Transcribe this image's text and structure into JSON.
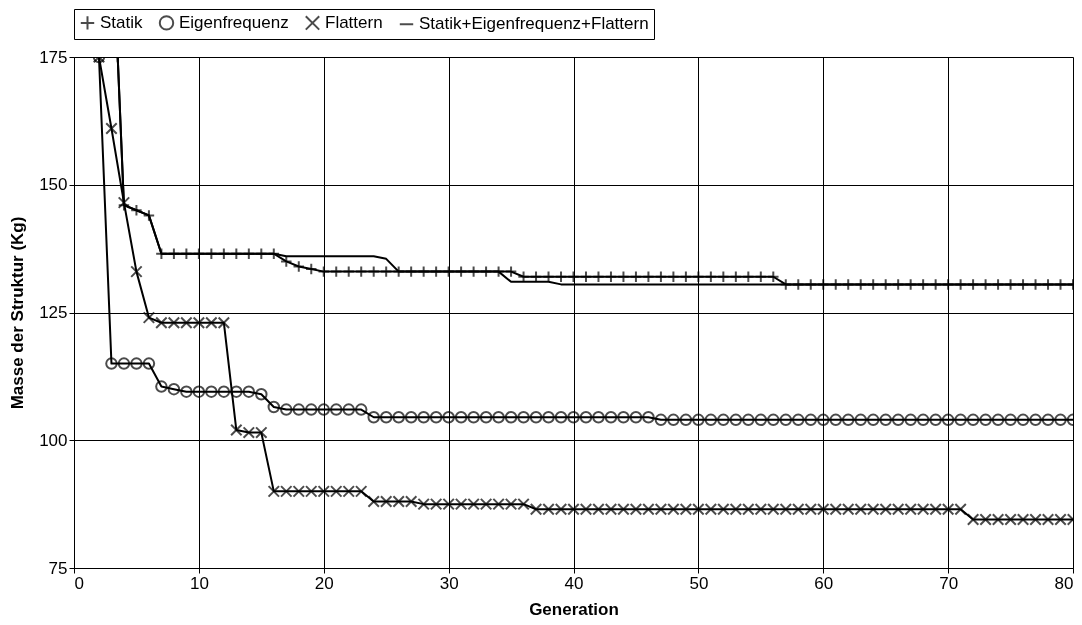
{
  "chart_data": {
    "type": "line",
    "xlabel": "Generation",
    "ylabel": "Masse der Struktur (Kg)",
    "xlim": [
      0,
      80
    ],
    "xticks": [
      0,
      10,
      20,
      30,
      40,
      50,
      60,
      70,
      80
    ],
    "ylim": [
      75,
      175
    ],
    "yticks": [
      75,
      100,
      125,
      150,
      175
    ],
    "grid": true,
    "legend": "top",
    "line_style": "solid",
    "series": [
      {
        "name": "Statik",
        "color": "#000000",
        "marker": "plus",
        "x": [
          3.5,
          4,
          5,
          6,
          7,
          8,
          9,
          10,
          11,
          12,
          13,
          14,
          15,
          16,
          17,
          18,
          19,
          20,
          21,
          22,
          23,
          24,
          25,
          26,
          27,
          28,
          29,
          30,
          31,
          32,
          33,
          34,
          35,
          36,
          37,
          38,
          39,
          40,
          41,
          42,
          43,
          44,
          45,
          46,
          47,
          48,
          49,
          50,
          51,
          52,
          53,
          54,
          55,
          56,
          57,
          58,
          59,
          60,
          61,
          62,
          63,
          64,
          65,
          66,
          67,
          68,
          69,
          70,
          71,
          72,
          73,
          74,
          75,
          76,
          77,
          78,
          79,
          80
        ],
        "values": [
          175,
          146,
          145,
          144,
          136.5,
          136.5,
          136.5,
          136.5,
          136.5,
          136.5,
          136.5,
          136.5,
          136.5,
          136.5,
          135,
          134,
          133.5,
          133,
          133,
          133,
          133,
          133,
          133,
          133,
          133,
          133,
          133,
          133,
          133,
          133,
          133,
          133,
          133,
          132,
          132,
          132,
          132,
          132,
          132,
          132,
          132,
          132,
          132,
          132,
          132,
          132,
          132,
          132,
          132,
          132,
          132,
          132,
          132,
          132,
          130.5,
          130.5,
          130.5,
          130.5,
          130.5,
          130.5,
          130.5,
          130.5,
          130.5,
          130.5,
          130.5,
          130.5,
          130.5,
          130.5,
          130.5,
          130.5,
          130.5,
          130.5,
          130.5,
          130.5,
          130.5,
          130.5,
          130.5,
          130.5
        ]
      },
      {
        "name": "Eigenfrequenz",
        "color": "#000000",
        "marker": "circle",
        "x": [
          2,
          3,
          4,
          5,
          6,
          7,
          8,
          9,
          10,
          11,
          12,
          13,
          14,
          15,
          16,
          17,
          18,
          19,
          20,
          21,
          22,
          23,
          24,
          25,
          26,
          27,
          28,
          29,
          30,
          31,
          32,
          33,
          34,
          35,
          36,
          37,
          38,
          39,
          40,
          41,
          42,
          43,
          44,
          45,
          46,
          47,
          48,
          49,
          50,
          51,
          52,
          53,
          54,
          55,
          56,
          57,
          58,
          59,
          60,
          61,
          62,
          63,
          64,
          65,
          66,
          67,
          68,
          69,
          70,
          71,
          72,
          73,
          74,
          75,
          76,
          77,
          78,
          79,
          80
        ],
        "values": [
          175,
          115,
          115,
          115,
          115,
          110.5,
          110,
          109.5,
          109.5,
          109.5,
          109.5,
          109.5,
          109.5,
          109,
          106.5,
          106,
          106,
          106,
          106,
          106,
          106,
          106,
          104.5,
          104.5,
          104.5,
          104.5,
          104.5,
          104.5,
          104.5,
          104.5,
          104.5,
          104.5,
          104.5,
          104.5,
          104.5,
          104.5,
          104.5,
          104.5,
          104.5,
          104.5,
          104.5,
          104.5,
          104.5,
          104.5,
          104.5,
          104,
          104,
          104,
          104,
          104,
          104,
          104,
          104,
          104,
          104,
          104,
          104,
          104,
          104,
          104,
          104,
          104,
          104,
          104,
          104,
          104,
          104,
          104,
          104,
          104,
          104,
          104,
          104,
          104,
          104,
          104,
          104,
          104,
          104
        ]
      },
      {
        "name": "Flattern",
        "color": "#000000",
        "marker": "cross",
        "x": [
          2,
          3,
          4,
          5,
          6,
          7,
          8,
          9,
          10,
          11,
          12,
          13,
          14,
          15,
          16,
          17,
          18,
          19,
          20,
          21,
          22,
          23,
          24,
          25,
          26,
          27,
          28,
          29,
          30,
          31,
          32,
          33,
          34,
          35,
          36,
          37,
          38,
          39,
          40,
          41,
          42,
          43,
          44,
          45,
          46,
          47,
          48,
          49,
          50,
          51,
          52,
          53,
          54,
          55,
          56,
          57,
          58,
          59,
          60,
          61,
          62,
          63,
          64,
          65,
          66,
          67,
          68,
          69,
          70,
          71,
          72,
          73,
          74,
          75,
          76,
          77,
          78,
          79,
          80
        ],
        "values": [
          175,
          161,
          146.5,
          133,
          124,
          123,
          123,
          123,
          123,
          123,
          123,
          102,
          101.5,
          101.5,
          90,
          90,
          90,
          90,
          90,
          90,
          90,
          90,
          88,
          88,
          88,
          88,
          87.5,
          87.5,
          87.5,
          87.5,
          87.5,
          87.5,
          87.5,
          87.5,
          87.5,
          86.5,
          86.5,
          86.5,
          86.5,
          86.5,
          86.5,
          86.5,
          86.5,
          86.5,
          86.5,
          86.5,
          86.5,
          86.5,
          86.5,
          86.5,
          86.5,
          86.5,
          86.5,
          86.5,
          86.5,
          86.5,
          86.5,
          86.5,
          86.5,
          86.5,
          86.5,
          86.5,
          86.5,
          86.5,
          86.5,
          86.5,
          86.5,
          86.5,
          86.5,
          86.5,
          84.5,
          84.5,
          84.5,
          84.5,
          84.5,
          84.5,
          84.5,
          84.5,
          84.5
        ]
      },
      {
        "name": "Statik+Eigenfrequenz+Flattern",
        "color": "#000000",
        "marker": "none",
        "x": [
          3.5,
          4,
          5,
          6,
          7,
          8,
          9,
          10,
          11,
          12,
          13,
          14,
          15,
          16,
          17,
          18,
          19,
          20,
          21,
          22,
          23,
          24,
          25,
          26,
          27,
          28,
          29,
          30,
          31,
          32,
          33,
          34,
          35,
          36,
          37,
          38,
          39,
          40,
          41,
          42,
          43,
          44,
          45,
          46,
          47,
          48,
          49,
          50,
          51,
          52,
          53,
          54,
          55,
          56,
          57,
          58,
          59,
          60,
          61,
          62,
          63,
          64,
          65,
          66,
          67,
          68,
          69,
          70,
          71,
          72,
          73,
          74,
          75,
          76,
          77,
          78,
          79,
          80
        ],
        "values": [
          175,
          146,
          145,
          144,
          136.5,
          136.5,
          136.5,
          136.5,
          136.5,
          136.5,
          136.5,
          136.5,
          136.5,
          136.5,
          136,
          136,
          136,
          136,
          136,
          136,
          136,
          136,
          135.5,
          133,
          133,
          133,
          133,
          133,
          133,
          133,
          133,
          133,
          131,
          131,
          131,
          131,
          130.5,
          130.5,
          130.5,
          130.5,
          130.5,
          130.5,
          130.5,
          130.5,
          130.5,
          130.5,
          130.5,
          130.5,
          130.5,
          130.5,
          130.5,
          130.5,
          130.5,
          130.5,
          130.5,
          130.5,
          130.5,
          130.5,
          130.5,
          130.5,
          130.5,
          130.5,
          130.5,
          130.5,
          130.5,
          130.5,
          130.5,
          130.5,
          130.5,
          130.5,
          130.5,
          130.5,
          130.5,
          130.5,
          130.5,
          130.5,
          130.5,
          130.5
        ]
      }
    ]
  }
}
